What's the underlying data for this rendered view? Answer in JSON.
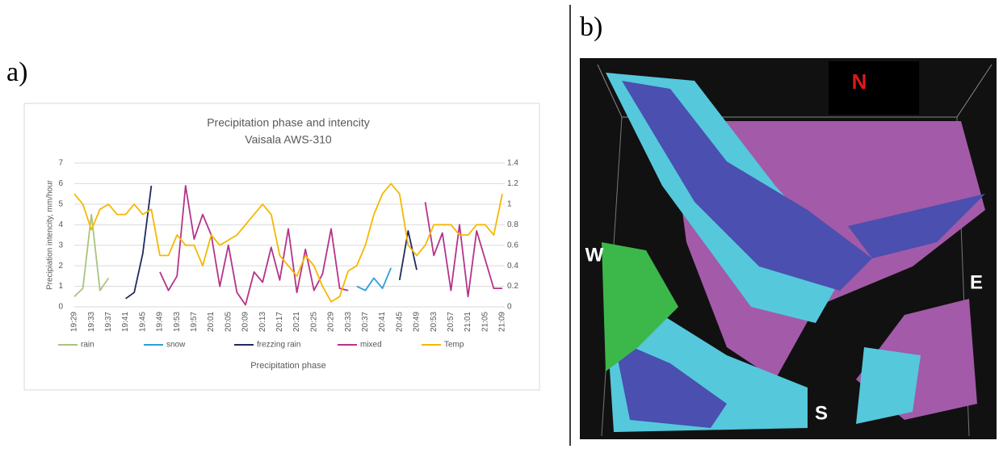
{
  "panel_labels": [
    "a)",
    "b)"
  ],
  "chart_data": {
    "type": "line",
    "title": "Precipitation phase and intencity",
    "subtitle": "Vaisala AWS-310",
    "y_label": "Precipiation intencity, mm/hour",
    "x_label": "Precipitation phase",
    "categories": [
      "19:29",
      null,
      "19:33",
      null,
      "19:37",
      null,
      "19:41",
      null,
      "19:45",
      null,
      "19:49",
      null,
      "19:53",
      null,
      "19:57",
      null,
      "20:01",
      null,
      "20:05",
      null,
      "20:09",
      null,
      "20:13",
      null,
      "20:17",
      null,
      "20:21",
      null,
      "20:25",
      null,
      "20:29",
      null,
      "20:33",
      null,
      "20:37",
      null,
      "20:41",
      null,
      "20:45",
      null,
      "20:49",
      null,
      "20:53",
      null,
      "20:57",
      null,
      "21:01",
      null,
      "21:05",
      null,
      "21:09"
    ],
    "ylim": [
      0,
      7
    ],
    "yticks": [
      0,
      1,
      2,
      3,
      4,
      5,
      6,
      7
    ],
    "y2lim": [
      0,
      1.4
    ],
    "y2ticks": [
      0,
      0.2,
      0.4,
      0.6,
      0.8,
      1,
      1.2,
      1.4
    ],
    "grid": true,
    "legend": "bottom",
    "series": [
      {
        "name": "rain",
        "color": "#a9c47f",
        "values": [
          0.5,
          0.9,
          4.5,
          0.8,
          1.4,
          null,
          null,
          null,
          null,
          null,
          null,
          null,
          null,
          null,
          null,
          null,
          null,
          null,
          null,
          null,
          null,
          null,
          null,
          null,
          null,
          null,
          null,
          null,
          null,
          null,
          null,
          null,
          null,
          null,
          null,
          null,
          null,
          null,
          null,
          null,
          null,
          null,
          null,
          null,
          null,
          null,
          null,
          null,
          null,
          null,
          null
        ]
      },
      {
        "name": "snow",
        "color": "#2e9fd8",
        "values": [
          null,
          null,
          null,
          null,
          null,
          null,
          null,
          null,
          null,
          null,
          null,
          null,
          null,
          null,
          null,
          null,
          null,
          null,
          null,
          null,
          null,
          null,
          null,
          null,
          null,
          null,
          null,
          null,
          null,
          null,
          null,
          null,
          null,
          1.0,
          0.8,
          1.4,
          0.9,
          1.9,
          null,
          null,
          null,
          null,
          null,
          null,
          null,
          null,
          null,
          null,
          null,
          null,
          null
        ]
      },
      {
        "name": "frezzing rain",
        "color": "#1f2a5c",
        "values": [
          null,
          null,
          null,
          null,
          null,
          null,
          0.4,
          0.7,
          2.6,
          5.9,
          null,
          null,
          null,
          null,
          null,
          null,
          null,
          null,
          null,
          null,
          null,
          null,
          null,
          null,
          null,
          null,
          null,
          null,
          null,
          null,
          null,
          null,
          null,
          null,
          null,
          null,
          null,
          null,
          1.3,
          3.7,
          1.8,
          null,
          null,
          null,
          null,
          null,
          null,
          null,
          null,
          null,
          null
        ]
      },
      {
        "name": "mixed",
        "color": "#b5338a",
        "values": [
          null,
          null,
          null,
          null,
          null,
          null,
          null,
          null,
          null,
          null,
          1.7,
          0.8,
          1.5,
          5.9,
          3.3,
          4.5,
          3.5,
          1.0,
          3.0,
          0.7,
          0.1,
          1.7,
          1.2,
          2.9,
          1.3,
          3.8,
          0.7,
          2.8,
          0.8,
          1.6,
          3.8,
          0.9,
          0.8,
          null,
          null,
          null,
          null,
          null,
          null,
          null,
          null,
          5.1,
          2.5,
          3.6,
          0.8,
          4.0,
          0.5,
          3.7,
          2.3,
          0.9,
          0.9
        ]
      },
      {
        "name": "Temp",
        "color": "#f5b800",
        "axis": "y2",
        "values": [
          1.1,
          1.0,
          0.75,
          0.95,
          1.0,
          0.9,
          0.9,
          1.0,
          0.9,
          0.95,
          0.5,
          0.5,
          0.7,
          0.6,
          0.6,
          0.4,
          0.7,
          0.6,
          0.65,
          0.7,
          0.8,
          0.9,
          1.0,
          0.9,
          0.5,
          0.4,
          0.3,
          0.5,
          0.4,
          0.2,
          0.05,
          0.1,
          0.35,
          0.4,
          0.6,
          0.9,
          1.1,
          1.2,
          1.1,
          0.6,
          0.5,
          0.6,
          0.8,
          0.8,
          0.8,
          0.7,
          0.7,
          0.8,
          0.8,
          0.7,
          1.1
        ]
      }
    ]
  },
  "image_labels": {
    "north": "N",
    "west": "W",
    "east": "E",
    "south": "S"
  }
}
